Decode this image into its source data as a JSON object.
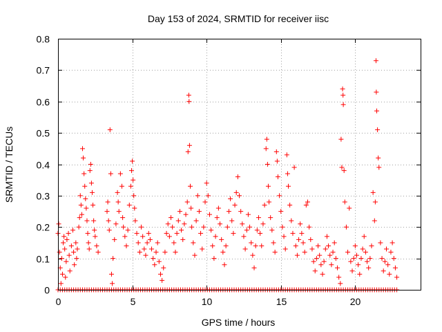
{
  "chart_data": {
    "type": "scatter",
    "title": "Day 153 of 2024, SRMTID for receiver iisc",
    "xlabel": "GPS time / hours",
    "ylabel": "SRMTID / TECUs",
    "xlim": [
      0,
      24.4
    ],
    "ylim": [
      0,
      0.8
    ],
    "x_ticks": [
      0,
      5,
      10,
      15,
      20
    ],
    "x_tick_labels": [
      "0",
      "5",
      "10",
      "15",
      "20"
    ],
    "y_ticks": [
      0,
      0.1,
      0.2,
      0.3,
      0.4,
      0.5,
      0.6,
      0.7,
      0.8
    ],
    "y_tick_labels": [
      "0",
      "0.1",
      "0.2",
      "0.3",
      "0.4",
      "0.5",
      "0.6",
      "0.7",
      "0.8"
    ],
    "grid": true,
    "marker": "plus",
    "color": "#ff0000",
    "series": [
      {
        "name": "SRMTID",
        "points": [
          [
            0.0,
            0.18
          ],
          [
            0.05,
            0.21
          ],
          [
            0.1,
            0.12
          ],
          [
            0.15,
            0.07
          ],
          [
            0.2,
            0.02
          ],
          [
            0.25,
            0.1
          ],
          [
            0.3,
            0.05
          ],
          [
            0.35,
            0.15
          ],
          [
            0.4,
            0.17
          ],
          [
            0.45,
            0.13
          ],
          [
            0.5,
            0.04
          ],
          [
            0.55,
            0.09
          ],
          [
            0.6,
            0.16
          ],
          [
            0.7,
            0.18
          ],
          [
            0.75,
            0.11
          ],
          [
            0.8,
            0.06
          ],
          [
            0.9,
            0.14
          ],
          [
            1.0,
            0.19
          ],
          [
            1.05,
            0.12
          ],
          [
            1.1,
            0.08
          ],
          [
            1.2,
            0.15
          ],
          [
            1.25,
            0.1
          ],
          [
            1.3,
            0.13
          ],
          [
            1.4,
            0.2
          ],
          [
            1.45,
            0.23
          ],
          [
            1.5,
            0.3
          ],
          [
            1.55,
            0.27
          ],
          [
            1.6,
            0.24
          ],
          [
            1.65,
            0.45
          ],
          [
            1.7,
            0.42
          ],
          [
            1.75,
            0.37
          ],
          [
            1.8,
            0.33
          ],
          [
            1.85,
            0.29
          ],
          [
            1.9,
            0.26
          ],
          [
            1.95,
            0.22
          ],
          [
            2.0,
            0.18
          ],
          [
            2.05,
            0.15
          ],
          [
            2.1,
            0.13
          ],
          [
            2.15,
            0.38
          ],
          [
            2.2,
            0.4
          ],
          [
            2.25,
            0.34
          ],
          [
            2.3,
            0.31
          ],
          [
            2.35,
            0.27
          ],
          [
            2.4,
            0.22
          ],
          [
            2.45,
            0.19
          ],
          [
            2.5,
            0.17
          ],
          [
            2.6,
            0.14
          ],
          [
            2.7,
            0.12
          ],
          [
            3.3,
            0.25
          ],
          [
            3.35,
            0.28
          ],
          [
            3.4,
            0.22
          ],
          [
            3.45,
            0.19
          ],
          [
            3.5,
            0.51
          ],
          [
            3.55,
            0.37
          ],
          [
            3.6,
            0.05
          ],
          [
            3.65,
            0.02
          ],
          [
            3.7,
            0.1
          ],
          [
            3.8,
            0.16
          ],
          [
            3.9,
            0.21
          ],
          [
            4.0,
            0.31
          ],
          [
            4.05,
            0.28
          ],
          [
            4.1,
            0.25
          ],
          [
            4.2,
            0.37
          ],
          [
            4.3,
            0.33
          ],
          [
            4.35,
            0.23
          ],
          [
            4.4,
            0.2
          ],
          [
            4.5,
            0.17
          ],
          [
            4.6,
            0.14
          ],
          [
            4.7,
            0.19
          ],
          [
            4.8,
            0.27
          ],
          [
            4.9,
            0.33
          ],
          [
            4.95,
            0.38
          ],
          [
            5.0,
            0.41
          ],
          [
            5.05,
            0.35
          ],
          [
            5.1,
            0.3
          ],
          [
            5.15,
            0.26
          ],
          [
            5.2,
            0.22
          ],
          [
            5.3,
            0.18
          ],
          [
            5.4,
            0.15
          ],
          [
            5.5,
            0.12
          ],
          [
            5.6,
            0.2
          ],
          [
            5.7,
            0.17
          ],
          [
            5.8,
            0.13
          ],
          [
            5.9,
            0.11
          ],
          [
            6.0,
            0.15
          ],
          [
            6.1,
            0.18
          ],
          [
            6.2,
            0.16
          ],
          [
            6.3,
            0.13
          ],
          [
            6.4,
            0.1
          ],
          [
            6.5,
            0.08
          ],
          [
            6.6,
            0.12
          ],
          [
            6.7,
            0.15
          ],
          [
            6.8,
            0.09
          ],
          [
            6.9,
            0.05
          ],
          [
            7.0,
            0.03
          ],
          [
            7.1,
            0.07
          ],
          [
            7.2,
            0.12
          ],
          [
            7.3,
            0.18
          ],
          [
            7.4,
            0.21
          ],
          [
            7.5,
            0.17
          ],
          [
            7.6,
            0.23
          ],
          [
            7.7,
            0.2
          ],
          [
            7.8,
            0.15
          ],
          [
            7.9,
            0.12
          ],
          [
            8.0,
            0.18
          ],
          [
            8.1,
            0.22
          ],
          [
            8.2,
            0.25
          ],
          [
            8.3,
            0.19
          ],
          [
            8.4,
            0.16
          ],
          [
            8.5,
            0.21
          ],
          [
            8.6,
            0.24
          ],
          [
            8.7,
            0.28
          ],
          [
            8.75,
            0.44
          ],
          [
            8.8,
            0.62
          ],
          [
            8.82,
            0.6
          ],
          [
            8.85,
            0.46
          ],
          [
            8.9,
            0.33
          ],
          [
            8.95,
            0.26
          ],
          [
            9.0,
            0.2
          ],
          [
            9.1,
            0.15
          ],
          [
            9.2,
            0.11
          ],
          [
            9.3,
            0.22
          ],
          [
            9.4,
            0.3
          ],
          [
            9.5,
            0.25
          ],
          [
            9.6,
            0.18
          ],
          [
            9.7,
            0.13
          ],
          [
            9.8,
            0.2
          ],
          [
            9.9,
            0.28
          ],
          [
            10.0,
            0.34
          ],
          [
            10.1,
            0.3
          ],
          [
            10.2,
            0.24
          ],
          [
            10.3,
            0.19
          ],
          [
            10.4,
            0.14
          ],
          [
            10.5,
            0.1
          ],
          [
            10.6,
            0.17
          ],
          [
            10.7,
            0.23
          ],
          [
            10.8,
            0.26
          ],
          [
            10.9,
            0.21
          ],
          [
            11.0,
            0.16
          ],
          [
            11.1,
            0.12
          ],
          [
            11.2,
            0.08
          ],
          [
            11.3,
            0.14
          ],
          [
            11.4,
            0.2
          ],
          [
            11.5,
            0.25
          ],
          [
            11.6,
            0.29
          ],
          [
            11.7,
            0.22
          ],
          [
            11.8,
            0.18
          ],
          [
            11.9,
            0.27
          ],
          [
            12.0,
            0.31
          ],
          [
            12.1,
            0.36
          ],
          [
            12.2,
            0.3
          ],
          [
            12.3,
            0.25
          ],
          [
            12.4,
            0.21
          ],
          [
            12.5,
            0.17
          ],
          [
            12.6,
            0.13
          ],
          [
            12.7,
            0.19
          ],
          [
            12.8,
            0.24
          ],
          [
            12.9,
            0.2
          ],
          [
            13.0,
            0.15
          ],
          [
            13.1,
            0.11
          ],
          [
            13.2,
            0.07
          ],
          [
            13.3,
            0.14
          ],
          [
            13.4,
            0.19
          ],
          [
            13.5,
            0.23
          ],
          [
            13.6,
            0.18
          ],
          [
            13.7,
            0.14
          ],
          [
            13.8,
            0.21
          ],
          [
            13.9,
            0.27
          ],
          [
            14.0,
            0.45
          ],
          [
            14.05,
            0.48
          ],
          [
            14.1,
            0.4
          ],
          [
            14.15,
            0.33
          ],
          [
            14.2,
            0.28
          ],
          [
            14.3,
            0.23
          ],
          [
            14.4,
            0.19
          ],
          [
            14.5,
            0.15
          ],
          [
            14.6,
            0.12
          ],
          [
            14.7,
            0.44
          ],
          [
            14.75,
            0.41
          ],
          [
            14.8,
            0.36
          ],
          [
            14.9,
            0.3
          ],
          [
            15.0,
            0.25
          ],
          [
            15.1,
            0.2
          ],
          [
            15.2,
            0.17
          ],
          [
            15.3,
            0.13
          ],
          [
            15.4,
            0.43
          ],
          [
            15.45,
            0.37
          ],
          [
            15.5,
            0.33
          ],
          [
            15.6,
            0.27
          ],
          [
            15.7,
            0.22
          ],
          [
            15.8,
            0.18
          ],
          [
            15.9,
            0.39
          ],
          [
            16.0,
            0.14
          ],
          [
            16.1,
            0.11
          ],
          [
            16.2,
            0.16
          ],
          [
            16.3,
            0.21
          ],
          [
            16.4,
            0.18
          ],
          [
            16.5,
            0.15
          ],
          [
            16.6,
            0.12
          ],
          [
            16.7,
            0.27
          ],
          [
            16.8,
            0.28
          ],
          [
            16.9,
            0.2
          ],
          [
            17.0,
            0.16
          ],
          [
            17.1,
            0.13
          ],
          [
            17.2,
            0.09
          ],
          [
            17.3,
            0.06
          ],
          [
            17.4,
            0.1
          ],
          [
            17.5,
            0.14
          ],
          [
            17.6,
            0.11
          ],
          [
            17.7,
            0.08
          ],
          [
            17.8,
            0.05
          ],
          [
            17.9,
            0.09
          ],
          [
            18.0,
            0.13
          ],
          [
            18.1,
            0.17
          ],
          [
            18.2,
            0.14
          ],
          [
            18.3,
            0.11
          ],
          [
            18.4,
            0.08
          ],
          [
            18.5,
            0.12
          ],
          [
            18.6,
            0.15
          ],
          [
            18.7,
            0.1
          ],
          [
            18.8,
            0.07
          ],
          [
            18.9,
            0.04
          ],
          [
            19.0,
            0.02
          ],
          [
            19.05,
            0.48
          ],
          [
            19.1,
            0.39
          ],
          [
            19.15,
            0.64
          ],
          [
            19.18,
            0.62
          ],
          [
            19.2,
            0.59
          ],
          [
            19.25,
            0.38
          ],
          [
            19.3,
            0.28
          ],
          [
            19.4,
            0.2
          ],
          [
            19.5,
            0.12
          ],
          [
            19.6,
            0.26
          ],
          [
            19.7,
            0.09
          ],
          [
            19.8,
            0.06
          ],
          [
            19.9,
            0.1
          ],
          [
            20.0,
            0.14
          ],
          [
            20.1,
            0.11
          ],
          [
            20.2,
            0.08
          ],
          [
            20.3,
            0.05
          ],
          [
            20.4,
            0.1
          ],
          [
            20.5,
            0.13
          ],
          [
            20.6,
            0.17
          ],
          [
            20.7,
            0.12
          ],
          [
            20.8,
            0.09
          ],
          [
            20.9,
            0.07
          ],
          [
            21.0,
            0.1
          ],
          [
            21.1,
            0.14
          ],
          [
            21.2,
            0.31
          ],
          [
            21.3,
            0.22
          ],
          [
            21.35,
            0.28
          ],
          [
            21.4,
            0.73
          ],
          [
            21.42,
            0.63
          ],
          [
            21.45,
            0.57
          ],
          [
            21.5,
            0.51
          ],
          [
            21.55,
            0.42
          ],
          [
            21.6,
            0.39
          ],
          [
            21.7,
            0.15
          ],
          [
            21.8,
            0.1
          ],
          [
            21.9,
            0.06
          ],
          [
            22.0,
            0.09
          ],
          [
            22.1,
            0.13
          ],
          [
            22.2,
            0.08
          ],
          [
            22.3,
            0.05
          ],
          [
            22.4,
            0.12
          ],
          [
            22.5,
            0.15
          ],
          [
            22.6,
            0.1
          ],
          [
            22.7,
            0.07
          ],
          [
            22.8,
            0.04
          ]
        ],
        "zero_range": [
          0,
          22.8
        ]
      }
    ]
  }
}
